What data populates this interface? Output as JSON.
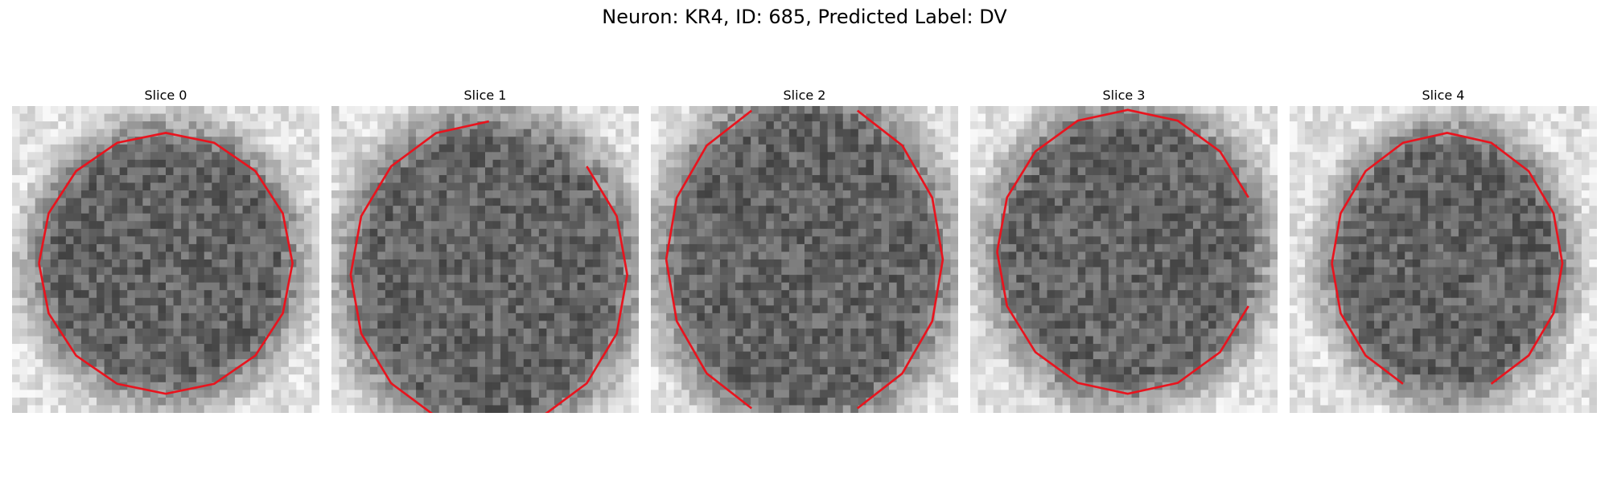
{
  "figure": {
    "title": "Neuron: KR4, ID: 685, Predicted Label: DV",
    "contour_color": "#e8141e"
  },
  "panels": [
    {
      "label": "Slice 0",
      "center": [
        20.0,
        20.5
      ],
      "radii": [
        16.5,
        17.0
      ],
      "seed": 3,
      "gaps": []
    },
    {
      "label": "Slice 1",
      "center": [
        20.5,
        22.0
      ],
      "radii": [
        18.0,
        20.0
      ],
      "seed": 11,
      "gaps": [
        [
          -1.35,
          -1.05
        ]
      ]
    },
    {
      "label": "Slice 2",
      "center": [
        20.0,
        20.0
      ],
      "radii": [
        18.0,
        21.0
      ],
      "seed": 23,
      "gaps": [
        [
          -1.78,
          -1.38
        ],
        [
          1.35,
          1.68
        ]
      ]
    },
    {
      "label": "Slice 3",
      "center": [
        20.5,
        19.0
      ],
      "radii": [
        17.0,
        18.5
      ],
      "seed": 37,
      "gaps": [
        [
          -0.12,
          0.22
        ]
      ]
    },
    {
      "label": "Slice 4",
      "center": [
        20.5,
        20.5
      ],
      "radii": [
        15.0,
        17.0
      ],
      "seed": 51,
      "gaps": [
        [
          1.45,
          1.68
        ]
      ]
    }
  ]
}
